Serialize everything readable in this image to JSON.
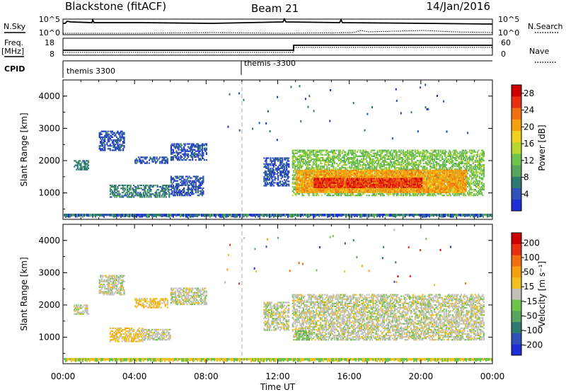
{
  "header": {
    "station": "Blackstone (fitACF)",
    "beam": "Beam 21",
    "date": "14/Jan/2016"
  },
  "top_panels": {
    "nsky_label": "N.Sky",
    "nsearch_label": "N.Search",
    "nsky_ticks": [
      "10^5",
      "10^0"
    ],
    "nsearch_ticks": [
      "10^5",
      "10^0"
    ],
    "freq_label": "Freq.",
    "freq_unit": "[MHz]",
    "freq_ticks": [
      "18",
      "8"
    ],
    "nave_label": "Nave",
    "nave_ticks": [
      "60",
      "0"
    ],
    "cpid_label": "CPID",
    "cpid_segments": [
      {
        "label": "themis 3300",
        "start": 0
      },
      {
        "label": "themis -3300",
        "start": 10
      }
    ]
  },
  "chart_data": [
    {
      "type": "heatmap",
      "title": "Power",
      "xlabel": "",
      "ylabel": "Slant Range [km]",
      "xlim": [
        0,
        24
      ],
      "ylim": [
        180,
        4500
      ],
      "y_ticks": [
        "1000",
        "2000",
        "3000",
        "4000"
      ],
      "colorbar": {
        "label": "Power [dB]",
        "ticks": [
          "4",
          "8",
          "12",
          "16",
          "20",
          "24",
          "28"
        ],
        "colors": [
          "#1f2fd6",
          "#2e50b8",
          "#2f7a6e",
          "#57a55c",
          "#6fc24a",
          "#b8d830",
          "#f0d020",
          "#f5a010",
          "#f07010",
          "#e83010",
          "#cc0000"
        ]
      },
      "bands": [
        {
          "t0": 0.6,
          "t1": 1.4,
          "r0": 1700,
          "r1": 2000,
          "level": 2
        },
        {
          "t0": 2.0,
          "t1": 3.4,
          "r0": 2300,
          "r1": 2900,
          "level": 1
        },
        {
          "t0": 4.0,
          "t1": 5.8,
          "r0": 1900,
          "r1": 2100,
          "level": 1
        },
        {
          "t0": 6.0,
          "t1": 8.0,
          "r0": 2000,
          "r1": 2500,
          "level": 1
        },
        {
          "t0": 2.6,
          "t1": 5.9,
          "r0": 850,
          "r1": 1250,
          "level": 2
        },
        {
          "t0": 6.0,
          "t1": 7.8,
          "r0": 900,
          "r1": 1500,
          "level": 1
        },
        {
          "t0": 11.2,
          "t1": 12.6,
          "r0": 1200,
          "r1": 2100,
          "level": 1
        },
        {
          "t0": 12.8,
          "t1": 23.5,
          "r0": 900,
          "r1": 2300,
          "level": 4
        },
        {
          "t0": 13.0,
          "t1": 22.5,
          "r0": 1000,
          "r1": 1700,
          "level": 7
        },
        {
          "t0": 14.0,
          "t1": 20.0,
          "r0": 1150,
          "r1": 1450,
          "level": 9
        }
      ]
    },
    {
      "type": "heatmap",
      "title": "Velocity",
      "xlabel": "Time UT",
      "ylabel": "Slant Range [km]",
      "xlim": [
        0,
        24
      ],
      "ylim": [
        180,
        4500
      ],
      "x_ticks": [
        "00:00",
        "04:00",
        "08:00",
        "12:00",
        "16:00",
        "20:00",
        "00:00"
      ],
      "y_ticks": [
        "1000",
        "2000",
        "3000",
        "4000"
      ],
      "colorbar": {
        "label": "Velocity [m s⁻¹]",
        "ticks": [
          "200",
          "100",
          "50",
          "15",
          "-15",
          "-50",
          "-100",
          "-200"
        ],
        "colors": [
          "#1f2fd6",
          "#2e50b8",
          "#2f7a6e",
          "#57a55c",
          "#6fc24a",
          "#c0c0b8",
          "#f0c020",
          "#f5a010",
          "#f07010",
          "#e83010",
          "#cc0000"
        ]
      },
      "bands": [
        {
          "t0": 0.6,
          "t1": 1.4,
          "r0": 1700,
          "r1": 2000,
          "level": 5
        },
        {
          "t0": 2.0,
          "t1": 3.4,
          "r0": 2300,
          "r1": 2900,
          "level": 5
        },
        {
          "t0": 4.0,
          "t1": 5.8,
          "r0": 1900,
          "r1": 2200,
          "level": 6
        },
        {
          "t0": 6.0,
          "t1": 8.0,
          "r0": 2000,
          "r1": 2500,
          "level": 5
        },
        {
          "t0": 2.6,
          "t1": 4.4,
          "r0": 850,
          "r1": 1300,
          "level": 6
        },
        {
          "t0": 4.4,
          "t1": 6.0,
          "r0": 900,
          "r1": 1250,
          "level": 5
        },
        {
          "t0": 11.2,
          "t1": 12.6,
          "r0": 1200,
          "r1": 2100,
          "level": 5
        },
        {
          "t0": 12.8,
          "t1": 23.5,
          "r0": 900,
          "r1": 2300,
          "level": 5
        },
        {
          "t0": 13.0,
          "t1": 13.8,
          "r0": 900,
          "r1": 1200,
          "level": 4
        }
      ]
    }
  ]
}
